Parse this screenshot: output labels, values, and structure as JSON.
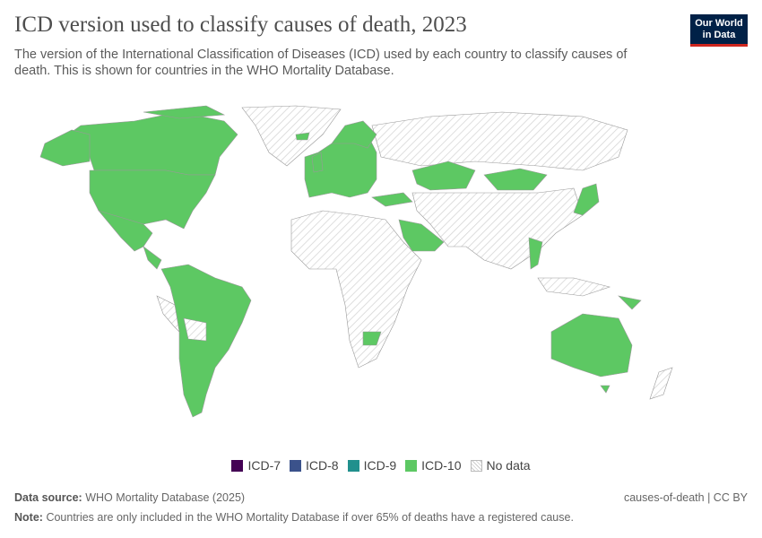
{
  "header": {
    "title": "ICD version used to classify causes of death, 2023",
    "subtitle": "The version of the International Classification of Diseases (ICD) used by each country to classify causes of death. This is shown for countries in the WHO Mortality Database.",
    "logo": [
      "Our World",
      "in Data"
    ]
  },
  "legend": [
    {
      "label": "ICD-7",
      "color": "#440154"
    },
    {
      "label": "ICD-8",
      "color": "#3b528b"
    },
    {
      "label": "ICD-9",
      "color": "#21908d"
    },
    {
      "label": "ICD-10",
      "color": "#5dc863"
    },
    {
      "label": "No data"
    }
  ],
  "footer": {
    "source_label": "Data source:",
    "source": "WHO Mortality Database (2025)",
    "license": "causes-of-death | CC BY",
    "note_label": "Note:",
    "note": "Countries are only included in the WHO Mortality Database if over 65% of deaths have a registered cause."
  }
}
